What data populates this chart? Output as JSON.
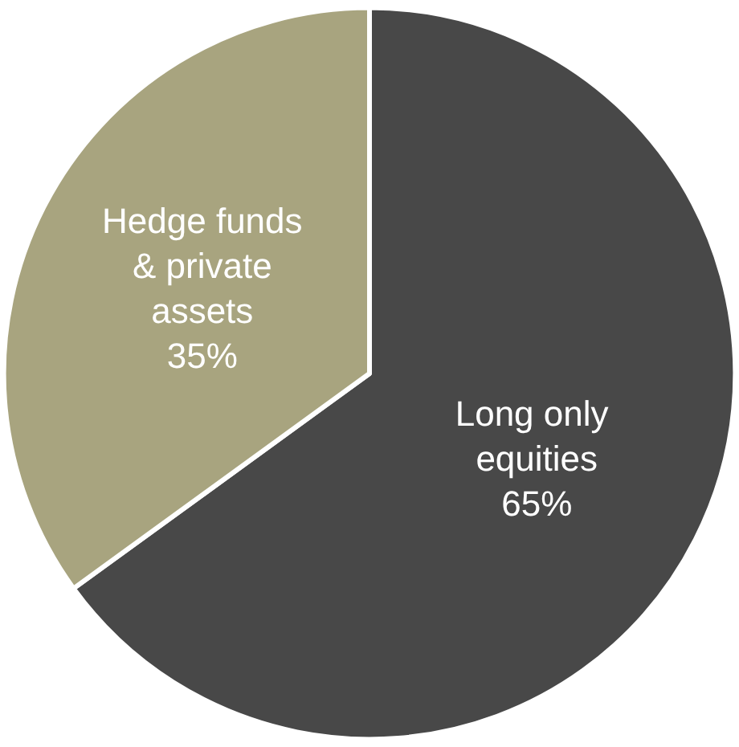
{
  "chart_data": {
    "type": "pie",
    "categories": [
      "Long only equities",
      "Hedge funds & private assets"
    ],
    "values": [
      65,
      35
    ],
    "value_labels": [
      "65%",
      "35%"
    ],
    "colors": [
      "#484848",
      "#a8a47f"
    ],
    "legend": false
  }
}
